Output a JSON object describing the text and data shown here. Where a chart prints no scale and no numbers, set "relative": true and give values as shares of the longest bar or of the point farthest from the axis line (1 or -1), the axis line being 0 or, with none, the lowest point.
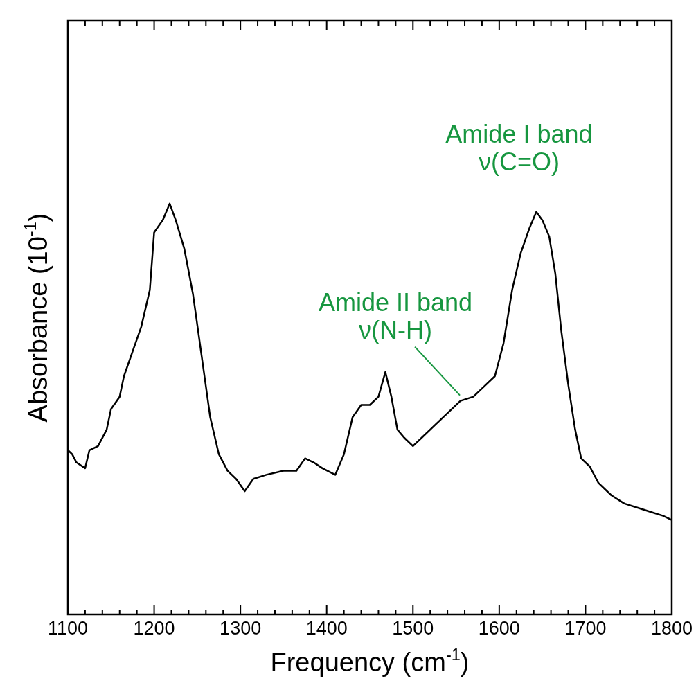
{
  "chart_data": {
    "type": "line",
    "relative": true,
    "xlabel": "Frequency (cm$^{-1}$)",
    "ylabel": "Absorbance (10$^{-1}$)",
    "x": [
      1100,
      1105,
      1110,
      1120,
      1125,
      1135,
      1145,
      1150,
      1160,
      1165,
      1175,
      1185,
      1195,
      1200,
      1210,
      1218,
      1225,
      1235,
      1245,
      1255,
      1265,
      1275,
      1285,
      1295,
      1305,
      1315,
      1330,
      1350,
      1365,
      1375,
      1385,
      1395,
      1410,
      1420,
      1430,
      1440,
      1450,
      1460,
      1468,
      1475,
      1482,
      1490,
      1500,
      1510,
      1525,
      1540,
      1555,
      1570,
      1585,
      1595,
      1605,
      1615,
      1625,
      1635,
      1643,
      1650,
      1658,
      1665,
      1672,
      1680,
      1688,
      1695,
      1705,
      1715,
      1730,
      1745,
      1760,
      1775,
      1790,
      1800
    ],
    "series": [
      {
        "color": "#000000",
        "values": [
          0.4,
          0.39,
          0.37,
          0.356,
          0.4,
          0.41,
          0.45,
          0.5,
          0.53,
          0.58,
          0.64,
          0.7,
          0.79,
          0.93,
          0.96,
          1.0,
          0.96,
          0.89,
          0.78,
          0.63,
          0.48,
          0.39,
          0.35,
          0.33,
          0.3,
          0.33,
          0.34,
          0.35,
          0.35,
          0.38,
          0.37,
          0.356,
          0.34,
          0.39,
          0.48,
          0.51,
          0.51,
          0.53,
          0.59,
          0.53,
          0.45,
          0.43,
          0.41,
          0.43,
          0.46,
          0.49,
          0.52,
          0.53,
          0.56,
          0.58,
          0.66,
          0.79,
          0.88,
          0.94,
          0.98,
          0.96,
          0.92,
          0.83,
          0.69,
          0.56,
          0.45,
          0.38,
          0.36,
          0.32,
          0.29,
          0.27,
          0.26,
          0.25,
          0.24,
          0.23
        ]
      }
    ],
    "xlim": [
      1100,
      1800
    ],
    "xticks": [
      1100,
      {
        "value": 1120,
        "label": null
      },
      {
        "value": 1140,
        "label": null
      },
      {
        "value": 1160,
        "label": null
      },
      {
        "value": 1180,
        "label": null
      },
      1200,
      {
        "value": 1220,
        "label": null
      },
      {
        "value": 1240,
        "label": null
      },
      {
        "value": 1260,
        "label": null
      },
      {
        "value": 1280,
        "label": null
      },
      1300,
      {
        "value": 1320,
        "label": null
      },
      {
        "value": 1340,
        "label": null
      },
      {
        "value": 1360,
        "label": null
      },
      {
        "value": 1380,
        "label": null
      },
      1400,
      {
        "value": 1420,
        "label": null
      },
      {
        "value": 1440,
        "label": null
      },
      {
        "value": 1460,
        "label": null
      },
      {
        "value": 1480,
        "label": null
      },
      1500,
      {
        "value": 1520,
        "label": null
      },
      {
        "value": 1540,
        "label": null
      },
      {
        "value": 1560,
        "label": null
      },
      {
        "value": 1580,
        "label": null
      },
      1600,
      {
        "value": 1620,
        "label": null
      },
      {
        "value": 1640,
        "label": null
      },
      {
        "value": 1660,
        "label": null
      },
      {
        "value": 1680,
        "label": null
      },
      1700,
      {
        "value": 1720,
        "label": null
      },
      {
        "value": 1740,
        "label": null
      },
      {
        "value": 1760,
        "label": null
      },
      {
        "value": 1780,
        "label": null
      },
      1800
    ],
    "annotations": [
      {
        "text": "Amide I band\nν(C=O)",
        "x": 1643,
        "y": 0.98
      },
      {
        "text": "Amide II band\nν(N-H)",
        "x": 1552,
        "y": 0.52
      }
    ],
    "grid": false,
    "legend": false,
    "marker": "none",
    "line_style": "solid"
  }
}
